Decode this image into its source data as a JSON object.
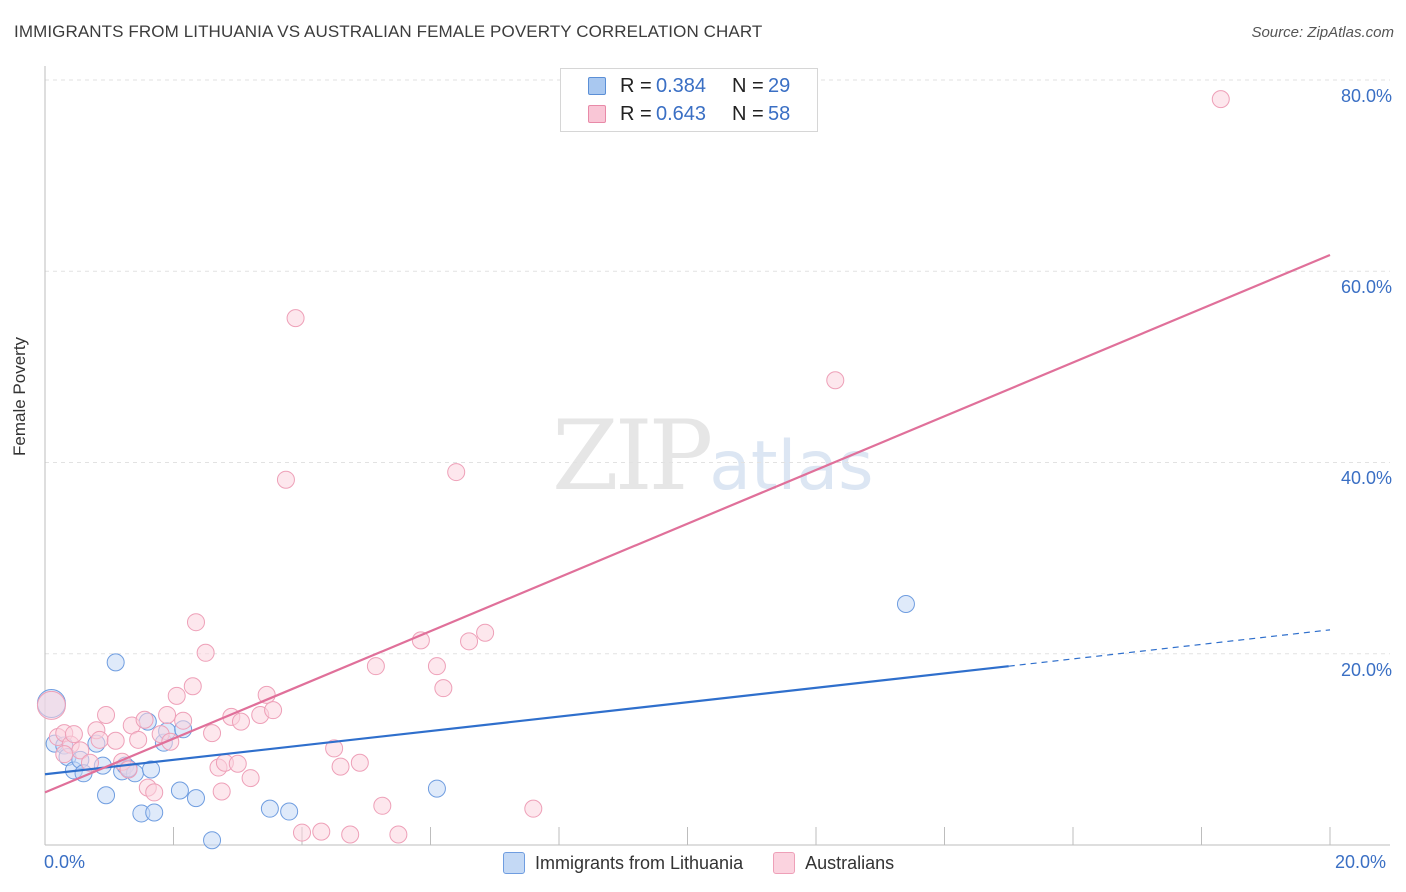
{
  "title": "IMMIGRANTS FROM LITHUANIA VS AUSTRALIAN FEMALE POVERTY CORRELATION CHART",
  "source": "Source: ZipAtlas.com",
  "watermark": {
    "zip": "ZIP",
    "atlas": "atlas"
  },
  "legend_top": {
    "r_label": "R =",
    "n_label": "N =",
    "rows": [
      {
        "r": "0.384",
        "n": "29",
        "color": "#a9c8f0",
        "border": "#5b8fd6"
      },
      {
        "r": "0.643",
        "n": "58",
        "color": "#f9c6d6",
        "border": "#e88aa8"
      }
    ]
  },
  "legend_bottom": [
    {
      "label": "Immigrants from Lithuania",
      "color": "#c4d9f5",
      "border": "#6f9de0"
    },
    {
      "label": "Australians",
      "color": "#fbd3df",
      "border": "#eea0b8"
    }
  ],
  "chart_data": {
    "type": "scatter",
    "title": "IMMIGRANTS FROM LITHUANIA VS AUSTRALIAN FEMALE POVERTY CORRELATION CHART",
    "xlabel": "",
    "ylabel": "Female Poverty",
    "xlim": [
      0,
      20
    ],
    "ylim": [
      0,
      80
    ],
    "x_tick_labels": [
      "0.0%",
      "20.0%"
    ],
    "y_tick_labels": [
      "20.0%",
      "40.0%",
      "60.0%",
      "80.0%"
    ],
    "y_tick_values": [
      20,
      40,
      60,
      80
    ],
    "series": [
      {
        "name": "Immigrants from Lithuania",
        "color": "#6f9de0",
        "fill": "#c4d9f5",
        "trend": {
          "x0": 0,
          "y0": 7.4,
          "x1": 15.0,
          "y1": 18.7,
          "dash_to_x": 20,
          "dash_to_y": 22.5,
          "color": "#2f6fcc"
        },
        "points": [
          [
            0.1,
            14.8
          ],
          [
            0.15,
            10.6
          ],
          [
            0.3,
            10.4
          ],
          [
            0.35,
            9.2
          ],
          [
            0.45,
            7.8
          ],
          [
            0.55,
            8.9
          ],
          [
            0.6,
            7.5
          ],
          [
            0.8,
            10.6
          ],
          [
            0.9,
            8.3
          ],
          [
            0.95,
            5.2
          ],
          [
            1.1,
            19.1
          ],
          [
            1.2,
            7.7
          ],
          [
            1.25,
            8.3
          ],
          [
            1.4,
            7.5
          ],
          [
            1.5,
            3.3
          ],
          [
            1.6,
            12.9
          ],
          [
            1.65,
            7.9
          ],
          [
            1.7,
            3.4
          ],
          [
            1.85,
            10.7
          ],
          [
            1.9,
            11.9
          ],
          [
            2.15,
            12.1
          ],
          [
            2.1,
            5.7
          ],
          [
            2.35,
            4.9
          ],
          [
            2.6,
            0.5
          ],
          [
            3.5,
            3.8
          ],
          [
            3.8,
            3.5
          ],
          [
            6.1,
            5.9
          ],
          [
            13.4,
            25.2
          ],
          [
            1.3,
            8.0
          ]
        ]
      },
      {
        "name": "Australians",
        "color": "#eea0b8",
        "fill": "#fbd3df",
        "trend": {
          "x0": 0,
          "y0": 5.5,
          "x1": 20,
          "y1": 61.7,
          "color": "#e0709a"
        },
        "points": [
          [
            0.1,
            14.6
          ],
          [
            0.2,
            11.3
          ],
          [
            0.3,
            11.7
          ],
          [
            0.4,
            10.5
          ],
          [
            0.45,
            11.6
          ],
          [
            0.55,
            9.9
          ],
          [
            0.7,
            8.6
          ],
          [
            0.8,
            12.0
          ],
          [
            0.85,
            11.0
          ],
          [
            0.95,
            13.6
          ],
          [
            1.1,
            10.9
          ],
          [
            1.2,
            8.7
          ],
          [
            1.3,
            7.9
          ],
          [
            1.35,
            12.5
          ],
          [
            1.45,
            11.0
          ],
          [
            1.55,
            13.1
          ],
          [
            1.6,
            6.0
          ],
          [
            1.7,
            5.5
          ],
          [
            1.8,
            11.6
          ],
          [
            1.9,
            13.6
          ],
          [
            1.95,
            10.8
          ],
          [
            2.05,
            15.6
          ],
          [
            2.15,
            13.0
          ],
          [
            2.3,
            16.6
          ],
          [
            2.35,
            23.3
          ],
          [
            2.5,
            20.1
          ],
          [
            2.6,
            11.7
          ],
          [
            2.7,
            8.1
          ],
          [
            2.75,
            5.6
          ],
          [
            2.8,
            8.6
          ],
          [
            2.9,
            13.4
          ],
          [
            3.0,
            8.5
          ],
          [
            3.05,
            12.9
          ],
          [
            3.2,
            7.0
          ],
          [
            3.35,
            13.6
          ],
          [
            3.45,
            15.7
          ],
          [
            3.55,
            14.1
          ],
          [
            3.75,
            38.2
          ],
          [
            3.9,
            55.1
          ],
          [
            4.0,
            1.3
          ],
          [
            4.3,
            1.4
          ],
          [
            4.5,
            10.1
          ],
          [
            4.6,
            8.2
          ],
          [
            4.75,
            1.1
          ],
          [
            4.9,
            8.6
          ],
          [
            5.15,
            18.7
          ],
          [
            5.25,
            4.1
          ],
          [
            5.5,
            1.1
          ],
          [
            5.85,
            21.4
          ],
          [
            6.1,
            18.7
          ],
          [
            6.2,
            16.4
          ],
          [
            6.4,
            39.0
          ],
          [
            6.6,
            21.3
          ],
          [
            6.85,
            22.2
          ],
          [
            7.6,
            3.8
          ],
          [
            12.3,
            48.6
          ],
          [
            18.3,
            78.0
          ],
          [
            0.3,
            9.5
          ]
        ]
      }
    ]
  }
}
